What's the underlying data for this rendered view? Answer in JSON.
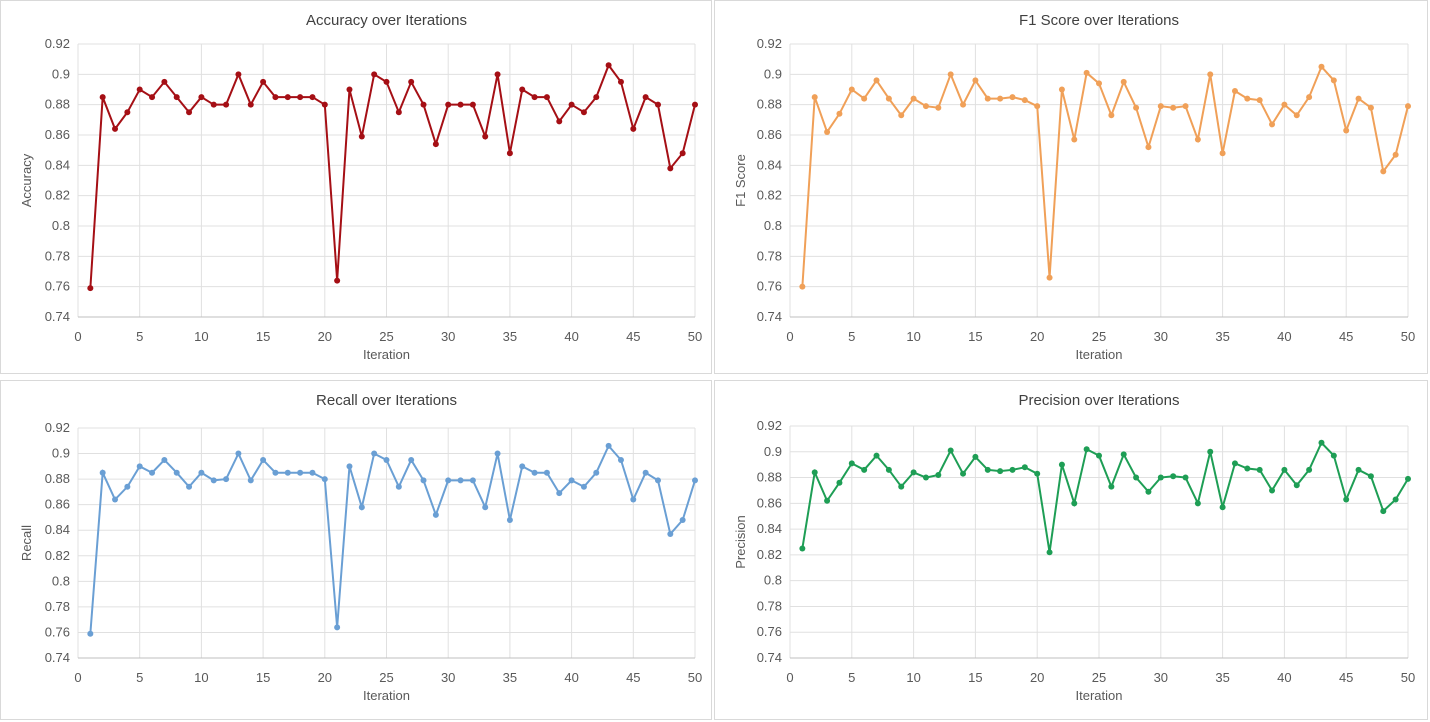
{
  "chart_data": [
    {
      "type": "line",
      "title": "Accuracy over Iterations",
      "xlabel": "Iteration",
      "ylabel": "Accuracy",
      "xlim": [
        0,
        50
      ],
      "ylim": [
        0.74,
        0.92
      ],
      "xticks": [
        "0",
        "5",
        "10",
        "15",
        "20",
        "25",
        "30",
        "35",
        "40",
        "45",
        "50"
      ],
      "yticks": [
        "0.74",
        "0.76",
        "0.78",
        "0.8",
        "0.82",
        "0.84",
        "0.86",
        "0.88",
        "0.9",
        "0.92"
      ],
      "grid": true,
      "color": "#a50f15",
      "x": [
        1,
        2,
        3,
        4,
        5,
        6,
        7,
        8,
        9,
        10,
        11,
        12,
        13,
        14,
        15,
        16,
        17,
        18,
        19,
        20,
        21,
        22,
        23,
        24,
        25,
        26,
        27,
        28,
        29,
        30,
        31,
        32,
        33,
        34,
        35,
        36,
        37,
        38,
        39,
        40,
        41,
        42,
        43,
        44,
        45,
        46,
        47,
        48,
        49,
        50
      ],
      "values": [
        0.759,
        0.885,
        0.864,
        0.875,
        0.89,
        0.885,
        0.895,
        0.885,
        0.875,
        0.885,
        0.88,
        0.88,
        0.9,
        0.88,
        0.895,
        0.885,
        0.885,
        0.885,
        0.885,
        0.88,
        0.764,
        0.89,
        0.859,
        0.9,
        0.895,
        0.875,
        0.895,
        0.88,
        0.854,
        0.88,
        0.88,
        0.88,
        0.859,
        0.9,
        0.848,
        0.89,
        0.885,
        0.885,
        0.869,
        0.88,
        0.875,
        0.885,
        0.906,
        0.895,
        0.864,
        0.885,
        0.88,
        0.838,
        0.848,
        0.88
      ]
    },
    {
      "type": "line",
      "title": "F1 Score over Iterations",
      "xlabel": "Iteration",
      "ylabel": "F1 Score",
      "xlim": [
        0,
        50
      ],
      "ylim": [
        0.74,
        0.92
      ],
      "xticks": [
        "0",
        "5",
        "10",
        "15",
        "20",
        "25",
        "30",
        "35",
        "40",
        "45",
        "50"
      ],
      "yticks": [
        "0.74",
        "0.76",
        "0.78",
        "0.8",
        "0.82",
        "0.84",
        "0.86",
        "0.88",
        "0.9",
        "0.92"
      ],
      "grid": true,
      "color": "#f0a058",
      "x": [
        1,
        2,
        3,
        4,
        5,
        6,
        7,
        8,
        9,
        10,
        11,
        12,
        13,
        14,
        15,
        16,
        17,
        18,
        19,
        20,
        21,
        22,
        23,
        24,
        25,
        26,
        27,
        28,
        29,
        30,
        31,
        32,
        33,
        34,
        35,
        36,
        37,
        38,
        39,
        40,
        41,
        42,
        43,
        44,
        45,
        46,
        47,
        48,
        49,
        50
      ],
      "values": [
        0.76,
        0.885,
        0.862,
        0.874,
        0.89,
        0.884,
        0.896,
        0.884,
        0.873,
        0.884,
        0.879,
        0.878,
        0.9,
        0.88,
        0.896,
        0.884,
        0.884,
        0.885,
        0.883,
        0.879,
        0.766,
        0.89,
        0.857,
        0.901,
        0.894,
        0.873,
        0.895,
        0.878,
        0.852,
        0.879,
        0.878,
        0.879,
        0.857,
        0.9,
        0.848,
        0.889,
        0.884,
        0.883,
        0.867,
        0.88,
        0.873,
        0.885,
        0.905,
        0.896,
        0.863,
        0.884,
        0.878,
        0.836,
        0.847,
        0.879
      ]
    },
    {
      "type": "line",
      "title": "Recall over Iterations",
      "xlabel": "Iteration",
      "ylabel": "Recall",
      "xlim": [
        0,
        50
      ],
      "ylim": [
        0.74,
        0.92
      ],
      "xticks": [
        "0",
        "5",
        "10",
        "15",
        "20",
        "25",
        "30",
        "35",
        "40",
        "45",
        "50"
      ],
      "yticks": [
        "0.74",
        "0.76",
        "0.78",
        "0.8",
        "0.82",
        "0.84",
        "0.86",
        "0.88",
        "0.9",
        "0.92"
      ],
      "grid": true,
      "color": "#6a9fd4",
      "x": [
        1,
        2,
        3,
        4,
        5,
        6,
        7,
        8,
        9,
        10,
        11,
        12,
        13,
        14,
        15,
        16,
        17,
        18,
        19,
        20,
        21,
        22,
        23,
        24,
        25,
        26,
        27,
        28,
        29,
        30,
        31,
        32,
        33,
        34,
        35,
        36,
        37,
        38,
        39,
        40,
        41,
        42,
        43,
        44,
        45,
        46,
        47,
        48,
        49,
        50
      ],
      "values": [
        0.759,
        0.885,
        0.864,
        0.874,
        0.89,
        0.885,
        0.895,
        0.885,
        0.874,
        0.885,
        0.879,
        0.88,
        0.9,
        0.879,
        0.895,
        0.885,
        0.885,
        0.885,
        0.885,
        0.88,
        0.764,
        0.89,
        0.858,
        0.9,
        0.895,
        0.874,
        0.895,
        0.879,
        0.852,
        0.879,
        0.879,
        0.879,
        0.858,
        0.9,
        0.848,
        0.89,
        0.885,
        0.885,
        0.869,
        0.879,
        0.874,
        0.885,
        0.906,
        0.895,
        0.864,
        0.885,
        0.879,
        0.837,
        0.848,
        0.879
      ]
    },
    {
      "type": "line",
      "title": "Precision over Iterations",
      "xlabel": "Iteration",
      "ylabel": "Precision",
      "xlim": [
        0,
        50
      ],
      "ylim": [
        0.74,
        0.92
      ],
      "xticks": [
        "0",
        "5",
        "10",
        "15",
        "20",
        "25",
        "30",
        "35",
        "40",
        "45",
        "50"
      ],
      "yticks": [
        "0.74",
        "0.76",
        "0.78",
        "0.8",
        "0.82",
        "0.84",
        "0.86",
        "0.88",
        "0.9",
        "0.92"
      ],
      "grid": true,
      "color": "#1e9e55",
      "x": [
        1,
        2,
        3,
        4,
        5,
        6,
        7,
        8,
        9,
        10,
        11,
        12,
        13,
        14,
        15,
        16,
        17,
        18,
        19,
        20,
        21,
        22,
        23,
        24,
        25,
        26,
        27,
        28,
        29,
        30,
        31,
        32,
        33,
        34,
        35,
        36,
        37,
        38,
        39,
        40,
        41,
        42,
        43,
        44,
        45,
        46,
        47,
        48,
        49,
        50
      ],
      "values": [
        0.825,
        0.884,
        0.862,
        0.876,
        0.891,
        0.886,
        0.897,
        0.886,
        0.873,
        0.884,
        0.88,
        0.882,
        0.901,
        0.883,
        0.896,
        0.886,
        0.885,
        0.886,
        0.888,
        0.883,
        0.822,
        0.89,
        0.86,
        0.902,
        0.897,
        0.873,
        0.898,
        0.88,
        0.869,
        0.88,
        0.881,
        0.88,
        0.86,
        0.9,
        0.857,
        0.891,
        0.887,
        0.886,
        0.87,
        0.886,
        0.874,
        0.886,
        0.907,
        0.897,
        0.863,
        0.886,
        0.881,
        0.854,
        0.863,
        0.879
      ]
    }
  ]
}
